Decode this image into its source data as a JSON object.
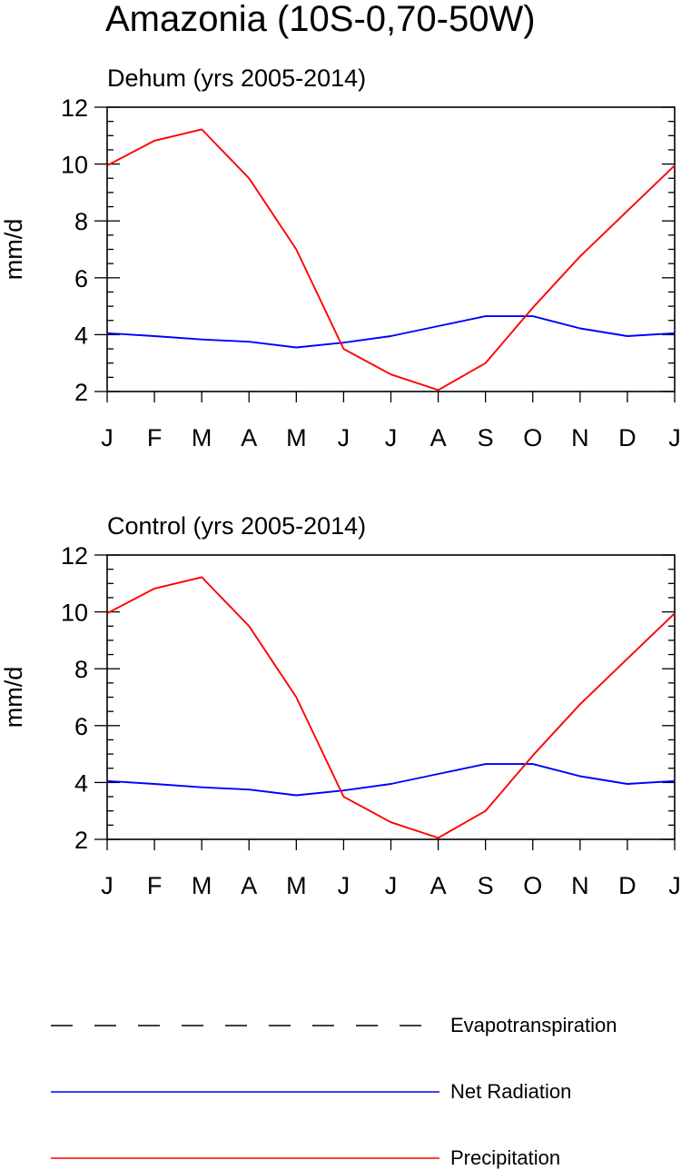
{
  "figure": {
    "title": "Amazonia (10S-0,70-50W)"
  },
  "chart_data": [
    {
      "type": "line",
      "title": "Dehum (yrs 2005-2014)",
      "xlabel": "",
      "ylabel": "mm/d",
      "categories": [
        "J",
        "F",
        "M",
        "A",
        "M",
        "J",
        "J",
        "A",
        "S",
        "O",
        "N",
        "D",
        "J"
      ],
      "ylim": [
        2,
        12
      ],
      "yticks": [
        2,
        4,
        6,
        8,
        10,
        12
      ],
      "grid": false,
      "series": [
        {
          "name": "Net Radiation",
          "color": "#0000ff",
          "values": [
            4.05,
            3.95,
            3.83,
            3.75,
            3.55,
            3.72,
            3.95,
            4.3,
            4.65,
            4.65,
            4.22,
            3.95,
            4.05
          ]
        },
        {
          "name": "Precipitation",
          "color": "#ff0000",
          "values": [
            9.95,
            10.82,
            11.22,
            9.5,
            7.0,
            3.5,
            2.6,
            2.05,
            3.0,
            4.95,
            6.75,
            8.35,
            9.95
          ]
        }
      ]
    },
    {
      "type": "line",
      "title": "Control (yrs 2005-2014)",
      "xlabel": "",
      "ylabel": "mm/d",
      "categories": [
        "J",
        "F",
        "M",
        "A",
        "M",
        "J",
        "J",
        "A",
        "S",
        "O",
        "N",
        "D",
        "J"
      ],
      "ylim": [
        2,
        12
      ],
      "yticks": [
        2,
        4,
        6,
        8,
        10,
        12
      ],
      "grid": false,
      "series": [
        {
          "name": "Net Radiation",
          "color": "#0000ff",
          "values": [
            4.05,
            3.95,
            3.83,
            3.75,
            3.55,
            3.72,
            3.95,
            4.3,
            4.65,
            4.65,
            4.22,
            3.95,
            4.05
          ]
        },
        {
          "name": "Precipitation",
          "color": "#ff0000",
          "values": [
            9.95,
            10.82,
            11.22,
            9.5,
            7.0,
            3.5,
            2.6,
            2.05,
            3.0,
            4.95,
            6.75,
            8.35,
            9.95
          ]
        }
      ]
    }
  ],
  "legend": {
    "placement": "bottom",
    "items": [
      {
        "label": "Evapotranspiration",
        "color": "#000000",
        "style": "dashed"
      },
      {
        "label": "Net Radiation",
        "color": "#0000ff",
        "style": "solid"
      },
      {
        "label": "Precipitation",
        "color": "#ff0000",
        "style": "solid"
      }
    ]
  }
}
